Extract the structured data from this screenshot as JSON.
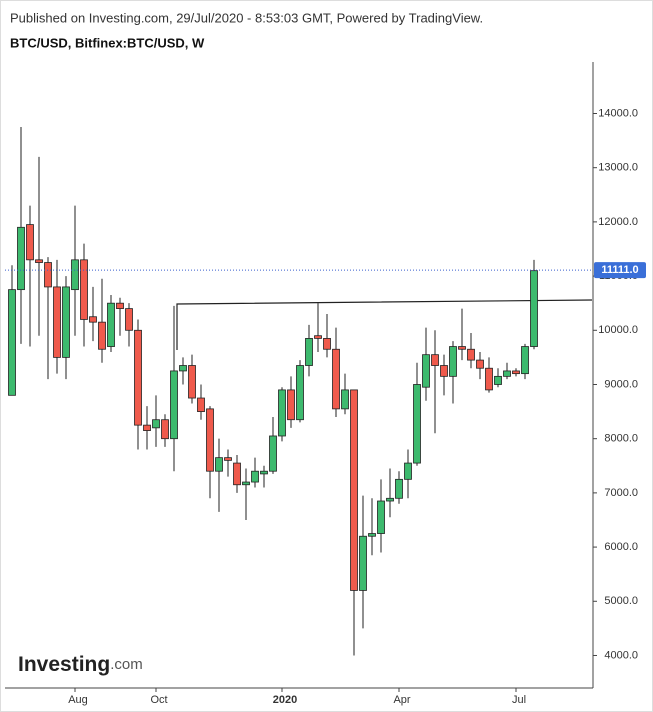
{
  "header": {
    "published": "Published on Investing.com, 29/Jul/2020 - 8:53:03 GMT, Powered by TradingView.",
    "logo_main": "Investing",
    "logo_suffix": ".com"
  },
  "chart_data": {
    "type": "candlestick",
    "title": "BTC/USD, Bitfinex:BTC/USD, W",
    "categories": [
      null,
      null,
      null,
      null,
      null,
      null,
      null,
      "Aug",
      null,
      null,
      null,
      null,
      null,
      null,
      null,
      null,
      "Oct",
      null,
      null,
      null,
      null,
      null,
      null,
      null,
      null,
      null,
      null,
      null,
      null,
      null,
      "2020",
      null,
      null,
      null,
      null,
      null,
      null,
      null,
      null,
      null,
      null,
      null,
      null,
      "Apr",
      null,
      null,
      null,
      null,
      null,
      null,
      null,
      null,
      null,
      null,
      null,
      null,
      "Jul",
      null,
      null
    ],
    "open": [
      8800,
      10750,
      11950,
      11300,
      11250,
      10800,
      9500,
      10750,
      11300,
      10250,
      10150,
      9700,
      10500,
      10400,
      10000,
      8250,
      8200,
      8350,
      8000,
      9250,
      9350,
      8750,
      8550,
      7400,
      7650,
      7550,
      7150,
      7200,
      7350,
      7400,
      8050,
      8900,
      8350,
      9350,
      9900,
      9850,
      9650,
      8550,
      8900,
      5200,
      6200,
      6250,
      6850,
      6900,
      7250,
      7550,
      8950,
      9550,
      9350,
      9150,
      9700,
      9650,
      9450,
      9300,
      9000,
      9150,
      9250,
      9200,
      9700
    ],
    "high": [
      11200,
      13750,
      12300,
      13200,
      11350,
      11300,
      11000,
      12300,
      11600,
      10800,
      10950,
      10650,
      10600,
      10500,
      10200,
      8600,
      8800,
      8450,
      10450,
      9500,
      9550,
      9000,
      8600,
      8000,
      7800,
      7700,
      7450,
      7650,
      7500,
      8400,
      8950,
      9150,
      9450,
      10100,
      10500,
      10300,
      10050,
      9200,
      8900,
      6950,
      6900,
      7250,
      7450,
      7400,
      7800,
      9400,
      10050,
      10000,
      9550,
      9800,
      10400,
      9950,
      9600,
      9500,
      9300,
      9400,
      9300,
      9750,
      11300
    ],
    "low": [
      8800,
      9750,
      9700,
      9900,
      9100,
      9200,
      9100,
      9900,
      9700,
      9800,
      9400,
      9600,
      9900,
      9700,
      7800,
      7800,
      7850,
      7850,
      7400,
      9000,
      8650,
      8350,
      6900,
      6650,
      7300,
      7000,
      6500,
      7100,
      7100,
      7350,
      7950,
      8200,
      8300,
      9150,
      9600,
      9500,
      8400,
      8450,
      4000,
      4500,
      5850,
      5900,
      6550,
      6800,
      6900,
      7500,
      8700,
      8100,
      8800,
      8650,
      9450,
      9300,
      9100,
      8850,
      8950,
      9100,
      9150,
      9100,
      9650
    ],
    "close": [
      10750,
      11900,
      11300,
      11250,
      10800,
      9500,
      10800,
      11300,
      10200,
      10150,
      9650,
      10500,
      10400,
      10000,
      8250,
      8150,
      8350,
      8000,
      9250,
      9350,
      8750,
      8500,
      7400,
      7650,
      7600,
      7150,
      7200,
      7400,
      7400,
      8050,
      8900,
      8350,
      9350,
      9850,
      9850,
      9650,
      8550,
      8900,
      5200,
      6200,
      6250,
      6850,
      6900,
      7250,
      7550,
      9000,
      9550,
      9350,
      9150,
      9700,
      9650,
      9450,
      9300,
      8900,
      9150,
      9250,
      9200,
      9700,
      11100
    ],
    "up_color": "#3dba6e",
    "down_color": "#ef5a4c",
    "last_price": {
      "value": 11111,
      "label": "11111.0"
    },
    "ylim": [
      3400,
      14950
    ],
    "yticks": [
      {
        "value": 4000,
        "label": "4000.0"
      },
      {
        "value": 5000,
        "label": "5000.0"
      },
      {
        "value": 6000,
        "label": "6000.0"
      },
      {
        "value": 7000,
        "label": "7000.0"
      },
      {
        "value": 8000,
        "label": "8000.0"
      },
      {
        "value": 9000,
        "label": "9000.0"
      },
      {
        "value": 10000,
        "label": "10000.0"
      },
      {
        "value": 11000,
        "label": "11000.0"
      },
      {
        "value": 12000,
        "label": "12000.0"
      },
      {
        "value": 13000,
        "label": "13000.0"
      },
      {
        "value": 14000,
        "label": "14000.0"
      }
    ]
  }
}
